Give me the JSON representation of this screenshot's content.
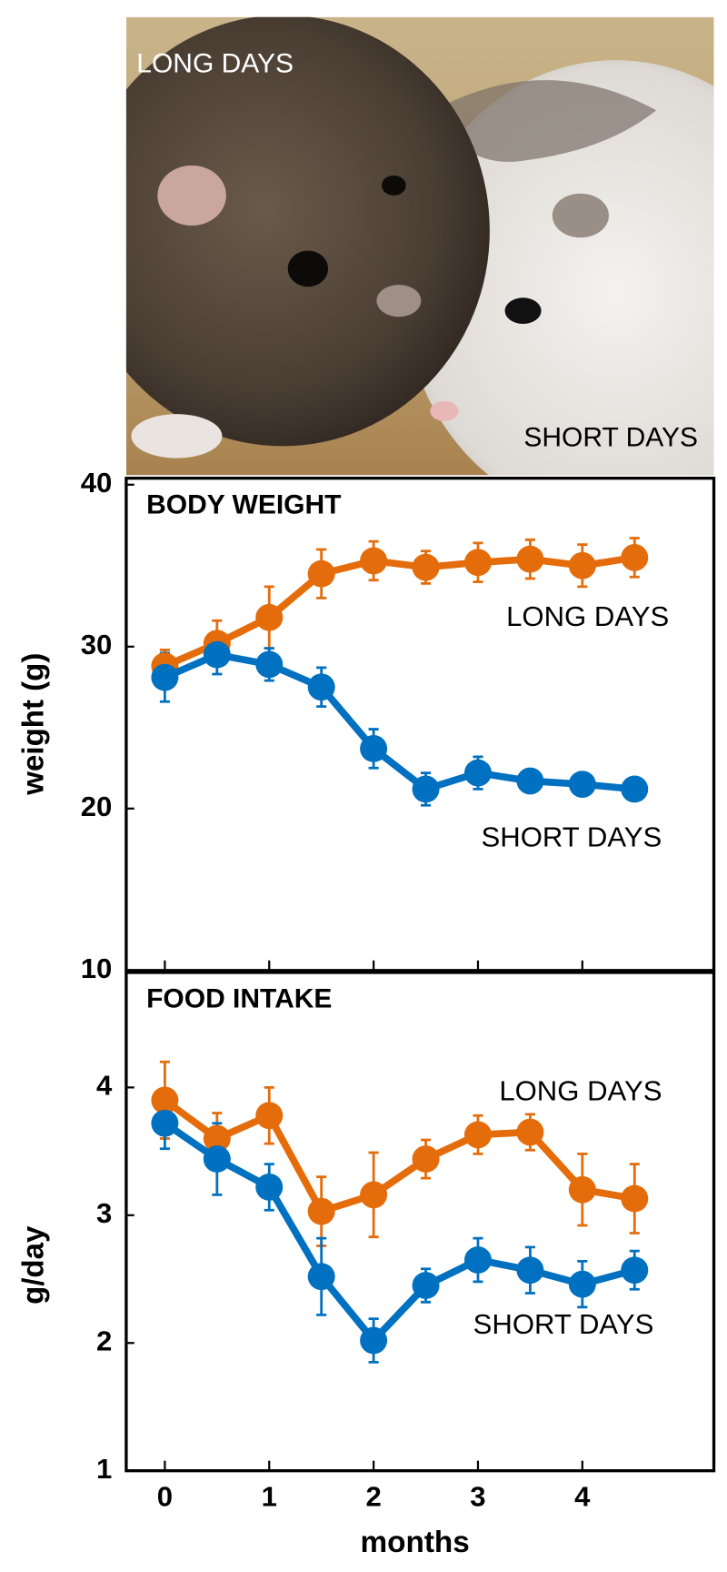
{
  "photo": {
    "labels": [
      "LONG DAYS",
      "SHORT DAYS"
    ]
  },
  "chart_data": [
    {
      "type": "line",
      "title": "BODY WEIGHT",
      "y_label": "weight (g)",
      "x": [
        0,
        0.5,
        1,
        1.5,
        2,
        2.5,
        3,
        3.5,
        4,
        4.5
      ],
      "xlim": [
        -0.37,
        5.26
      ],
      "xticks": [
        0,
        1,
        2,
        3,
        4
      ],
      "ylim": [
        10,
        40.4
      ],
      "yticks": [
        10,
        20,
        30,
        40
      ],
      "series": [
        {
          "name": "LONG DAYS",
          "color": "#e46c0a",
          "values": [
            28.8,
            30.2,
            31.8,
            34.5,
            35.3,
            34.9,
            35.2,
            35.4,
            35.0,
            35.5
          ],
          "errors": [
            1.0,
            1.4,
            1.9,
            1.5,
            1.2,
            1.0,
            1.2,
            1.2,
            1.3,
            1.2
          ]
        },
        {
          "name": "SHORT DAYS",
          "color": "#0070c0",
          "values": [
            28.1,
            29.5,
            28.9,
            27.5,
            23.7,
            21.2,
            22.2,
            21.7,
            21.5,
            21.2
          ],
          "errors": [
            1.5,
            1.2,
            1.0,
            1.2,
            1.2,
            1.0,
            1.0,
            0.6,
            0.6,
            0.6
          ]
        }
      ]
    },
    {
      "type": "line",
      "title": "FOOD INTAKE",
      "y_label": "g/day",
      "x_label": "months",
      "x": [
        0,
        0.5,
        1,
        1.5,
        2,
        2.5,
        3,
        3.5,
        4,
        4.5
      ],
      "xlim": [
        -0.37,
        5.26
      ],
      "xticks": [
        0,
        1,
        2,
        3,
        4
      ],
      "ylim": [
        1,
        4.9
      ],
      "yticks": [
        1,
        2,
        3,
        4
      ],
      "series": [
        {
          "name": "LONG DAYS",
          "color": "#e46c0a",
          "values": [
            3.9,
            3.6,
            3.78,
            3.03,
            3.16,
            3.44,
            3.63,
            3.65,
            3.2,
            3.13
          ],
          "errors": [
            0.3,
            0.2,
            0.22,
            0.27,
            0.33,
            0.15,
            0.15,
            0.14,
            0.28,
            0.27
          ]
        },
        {
          "name": "SHORT DAYS",
          "color": "#0070c0",
          "values": [
            3.72,
            3.44,
            3.22,
            2.52,
            2.02,
            2.45,
            2.65,
            2.57,
            2.46,
            2.57
          ],
          "errors": [
            0.2,
            0.28,
            0.18,
            0.3,
            0.17,
            0.13,
            0.17,
            0.18,
            0.18,
            0.15
          ]
        }
      ]
    }
  ]
}
